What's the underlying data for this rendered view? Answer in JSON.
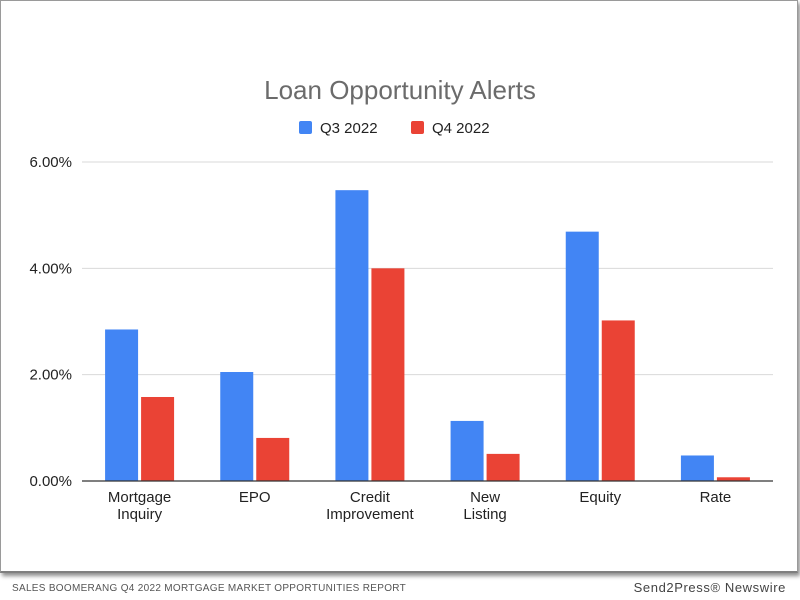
{
  "footer": {
    "left": "SALES BOOMERANG Q4 2022 MORTGAGE MARKET OPPORTUNITIES REPORT",
    "right": "Send2Press® Newswire"
  },
  "colors": {
    "q3": "#4285f4",
    "q4": "#ea4335",
    "grid": "#d9d9d9",
    "axis": "#333333"
  },
  "chart_data": {
    "type": "bar",
    "title": "Loan Opportunity Alerts",
    "xlabel": "",
    "ylabel": "",
    "ylim": [
      0,
      6
    ],
    "yticks": [
      "0.00%",
      "2.00%",
      "4.00%",
      "6.00%"
    ],
    "legend_position": "top-center",
    "grid": true,
    "categories": [
      [
        "Mortgage",
        "Inquiry"
      ],
      [
        "EPO"
      ],
      [
        "Credit",
        "Improvement"
      ],
      [
        "New",
        "Listing"
      ],
      [
        "Equity"
      ],
      [
        "Rate"
      ]
    ],
    "series": [
      {
        "name": "Q3 2022",
        "values": [
          2.85,
          2.05,
          5.47,
          1.13,
          4.69,
          0.48
        ]
      },
      {
        "name": "Q4 2022",
        "values": [
          1.58,
          0.81,
          4.0,
          0.51,
          3.02,
          0.07
        ]
      }
    ]
  }
}
